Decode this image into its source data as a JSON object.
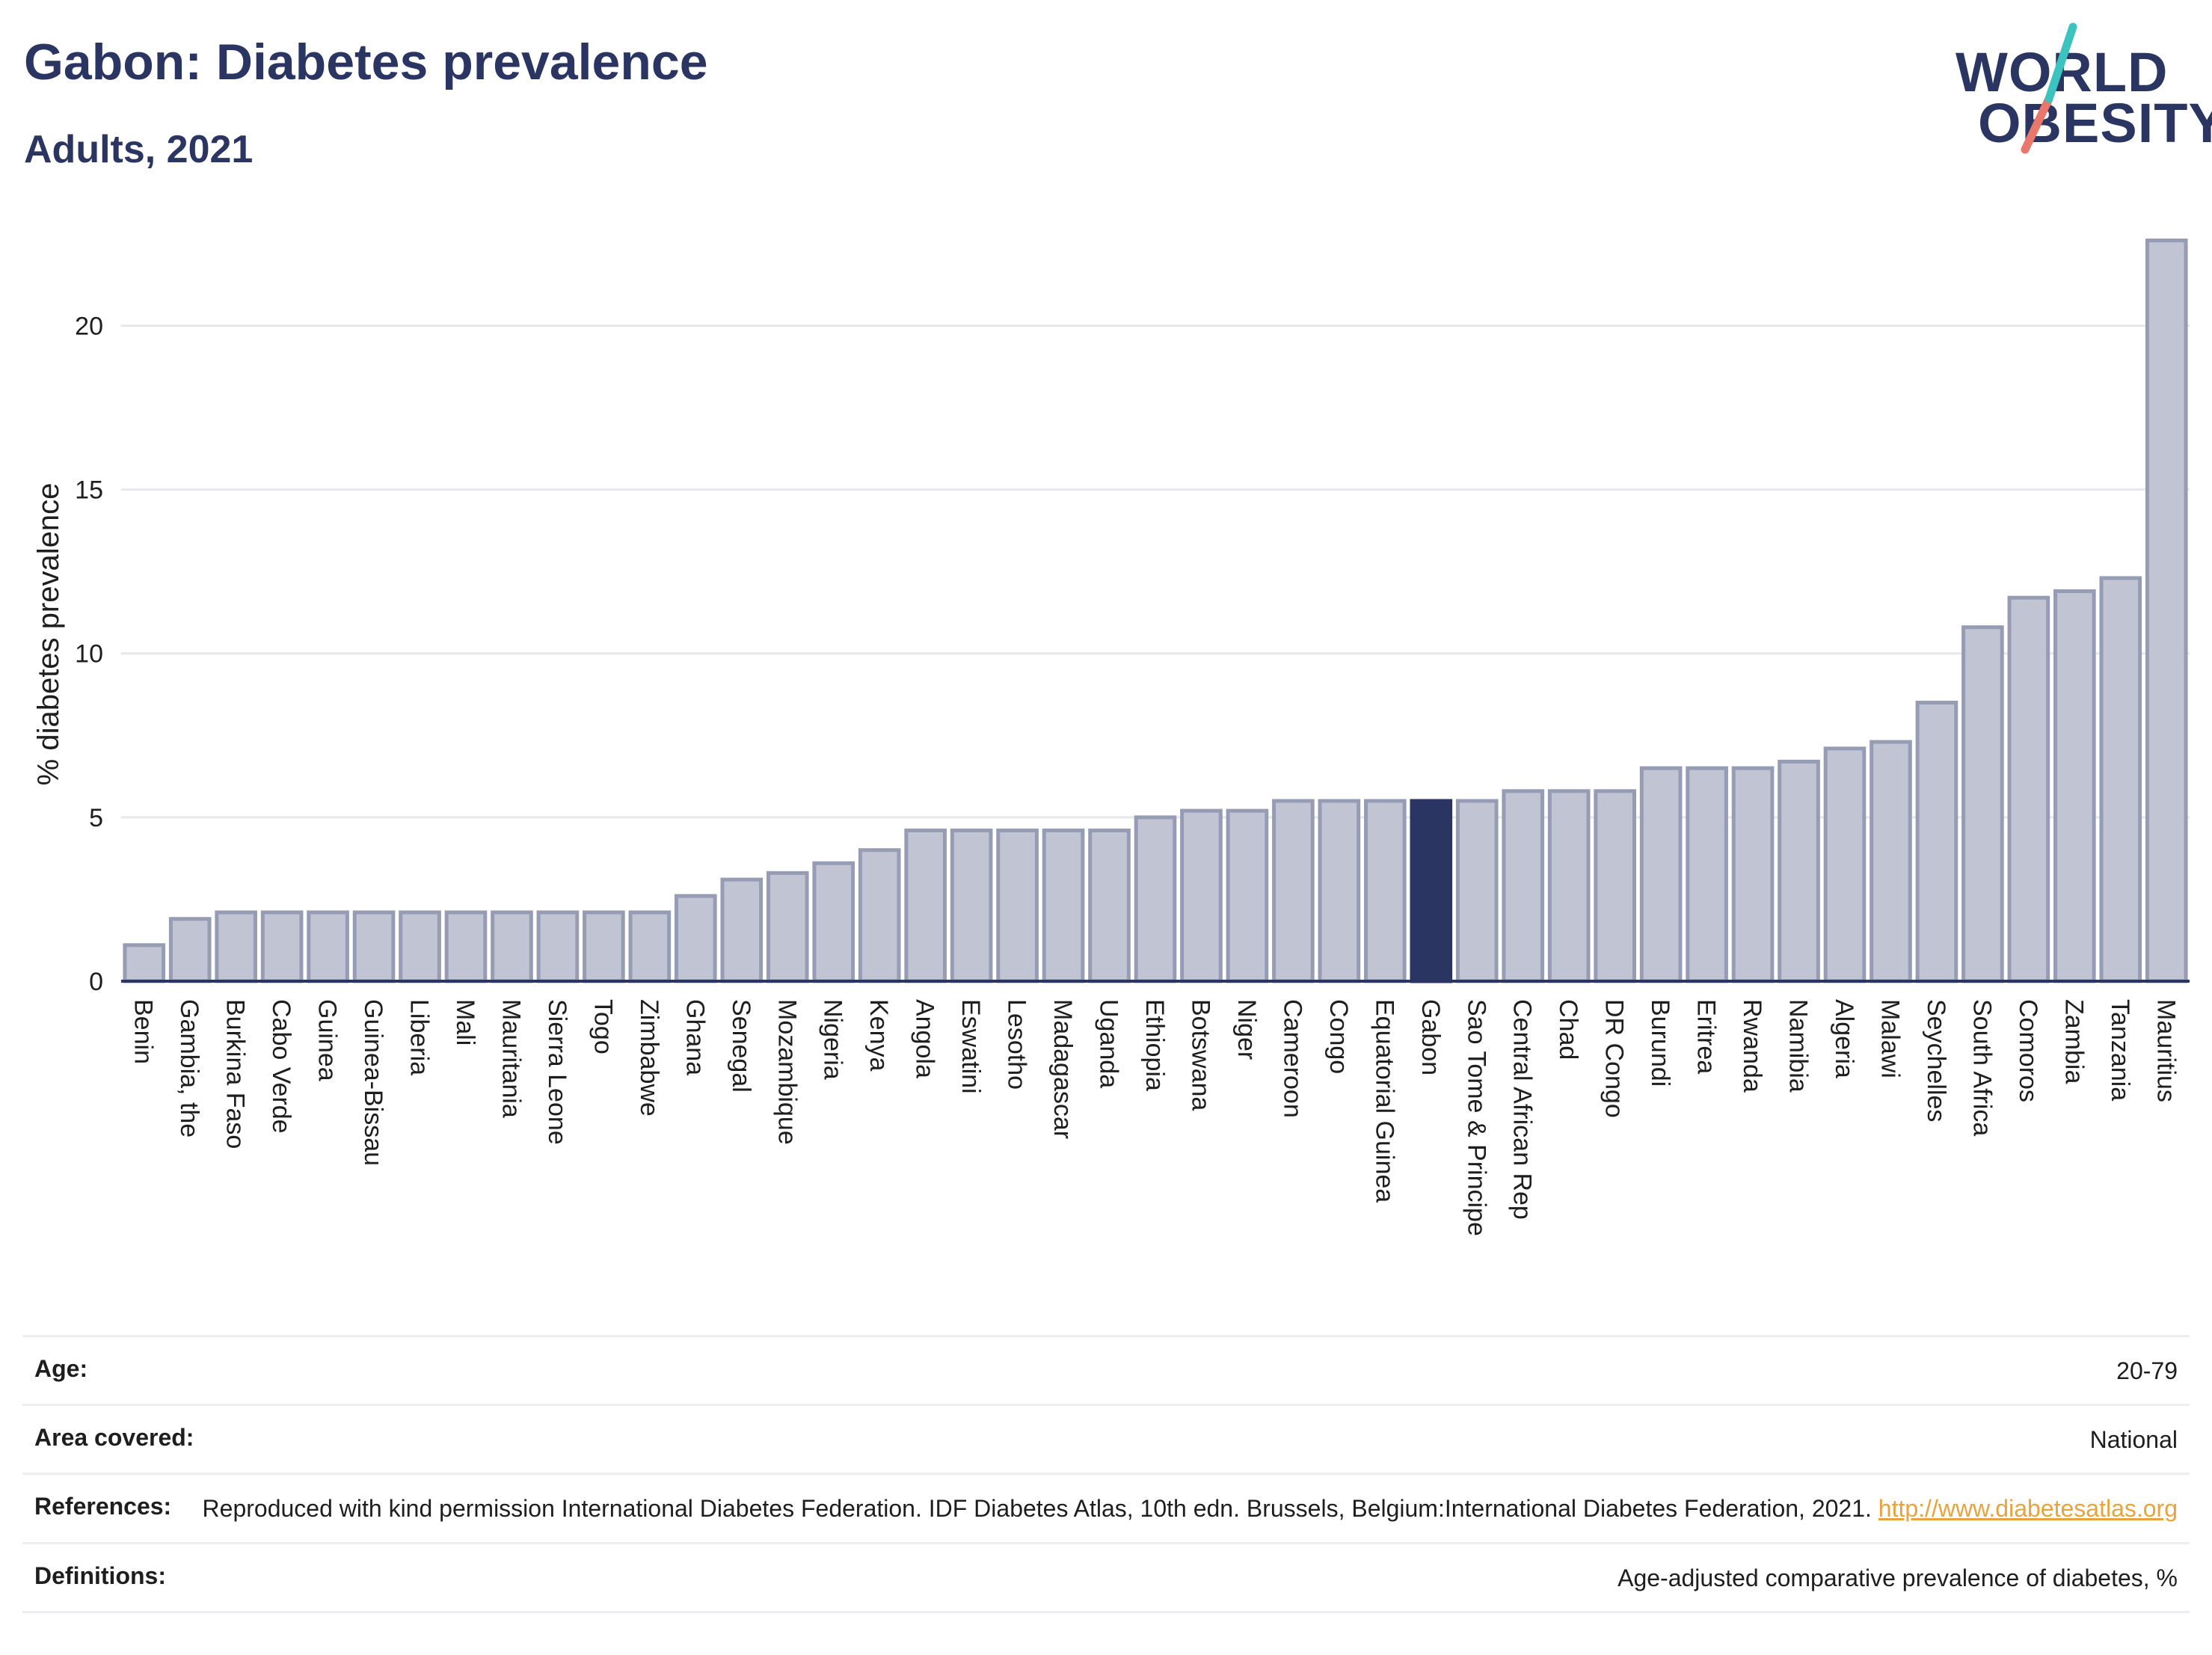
{
  "header": {
    "title": "Gabon: Diabetes prevalence",
    "subtitle": "Adults, 2021"
  },
  "logo": {
    "line1": "WORLD",
    "line2": "OBESITY",
    "colors": {
      "text": "#2b3562",
      "slash_top": "#3cc3c0",
      "slash_bottom": "#e9776b"
    }
  },
  "chart_data": {
    "type": "bar",
    "ylabel": "% diabetes prevalence",
    "ylim": [
      0,
      23
    ],
    "yticks": [
      0,
      5,
      10,
      15,
      20
    ],
    "grid": true,
    "highlight": "Gabon",
    "colors": {
      "bar": "#c0c4d3",
      "bar_edge": "#969cb3",
      "highlight": "#2b3562",
      "axis": "#2b3562",
      "grid": "#e7e8ee"
    },
    "categories": [
      "Benin",
      "Gambia, the",
      "Burkina Faso",
      "Cabo Verde",
      "Guinea",
      "Guinea-Bissau",
      "Liberia",
      "Mali",
      "Mauritania",
      "Sierra Leone",
      "Togo",
      "Zimbabwe",
      "Ghana",
      "Senegal",
      "Mozambique",
      "Nigeria",
      "Kenya",
      "Angola",
      "Eswatini",
      "Lesotho",
      "Madagascar",
      "Uganda",
      "Ethiopia",
      "Botswana",
      "Niger",
      "Cameroon",
      "Congo",
      "Equatorial Guinea",
      "Gabon",
      "Sao Tome & Principe",
      "Central African Rep",
      "Chad",
      "DR Congo",
      "Burundi",
      "Eritrea",
      "Rwanda",
      "Namibia",
      "Algeria",
      "Malawi",
      "Seychelles",
      "South Africa",
      "Comoros",
      "Zambia",
      "Tanzania",
      "Mauritius"
    ],
    "values": [
      1.1,
      1.9,
      2.1,
      2.1,
      2.1,
      2.1,
      2.1,
      2.1,
      2.1,
      2.1,
      2.1,
      2.1,
      2.6,
      3.1,
      3.3,
      3.6,
      4.0,
      4.6,
      4.6,
      4.6,
      4.6,
      4.6,
      5.0,
      5.2,
      5.2,
      5.5,
      5.5,
      5.5,
      5.5,
      5.5,
      5.8,
      5.8,
      5.8,
      6.5,
      6.5,
      6.5,
      6.7,
      7.1,
      7.3,
      8.5,
      10.8,
      11.7,
      11.9,
      12.3,
      22.6
    ]
  },
  "info_table": [
    {
      "label": "Age:",
      "value": "20-79"
    },
    {
      "label": "Area covered:",
      "value": "National"
    },
    {
      "label": "References:",
      "value": "Reproduced with kind permission International Diabetes Federation.  IDF Diabetes Atlas, 10th edn. Brussels, Belgium:International Diabetes Federation, 2021.",
      "link": "http://www.diabetesatlas.org"
    },
    {
      "label": "Definitions:",
      "value": "Age-adjusted comparative prevalence of diabetes, %"
    }
  ]
}
